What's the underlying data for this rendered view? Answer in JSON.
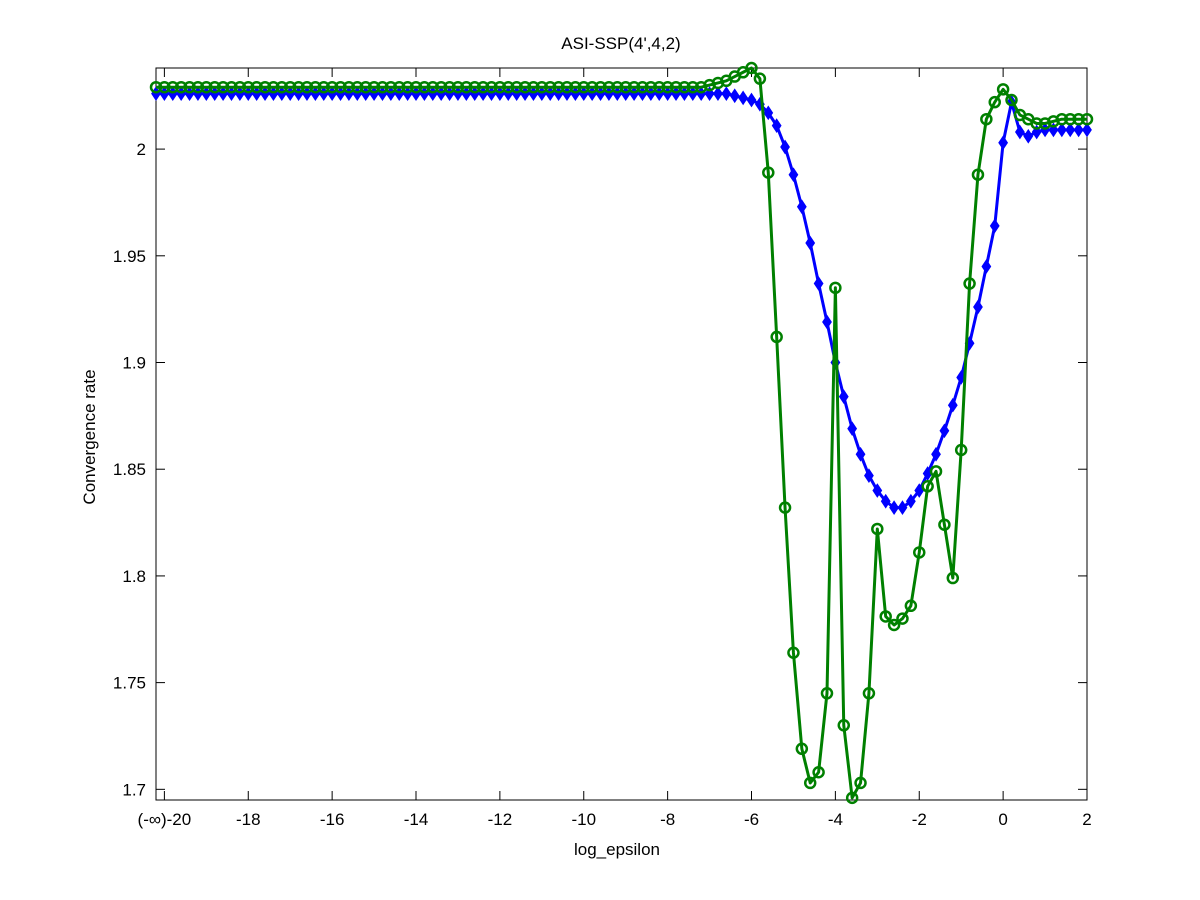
{
  "chart_data": {
    "type": "line",
    "title": "ASI-SSP(4',4,2)",
    "xlabel": "log_epsilon",
    "ylabel": "Convergence rate",
    "xlim": [
      -20.2,
      2
    ],
    "ylim": [
      1.695,
      2.038
    ],
    "xticks": [
      -20,
      -18,
      -16,
      -14,
      -12,
      -10,
      -8,
      -6,
      -4,
      -2,
      0,
      2
    ],
    "xtick_labels": [
      "(-∞)-20",
      "-18",
      "-16",
      "-14",
      "-12",
      "-10",
      "-8",
      "-6",
      "-4",
      "-2",
      "0",
      "2"
    ],
    "yticks": [
      1.7,
      1.75,
      1.8,
      1.85,
      1.9,
      1.95,
      2
    ],
    "ytick_labels": [
      "1.7",
      "1.75",
      "1.8",
      "1.85",
      "1.9",
      "1.95",
      "2"
    ],
    "grid": false,
    "legend": "none",
    "series": [
      {
        "color": "#0000ff",
        "marker": "diamond",
        "x": [
          -20.2,
          -6.6,
          -6.4,
          -6.2,
          -6.0,
          -5.8,
          -5.6,
          -5.4,
          -5.2,
          -5.0,
          -4.8,
          -4.6,
          -4.4,
          -4.2,
          -4.0,
          -3.8,
          -3.6,
          -3.4,
          -3.2,
          -3.0,
          -2.8,
          -2.6,
          -2.4,
          -2.2,
          -2.0,
          -1.8,
          -1.6,
          -1.4,
          -1.2,
          -1.0,
          -0.8,
          -0.6,
          -0.4,
          -0.2,
          0.0,
          0.2,
          0.4,
          0.6,
          0.8,
          1.0,
          1.2,
          1.4,
          1.6,
          1.8,
          2.0
        ],
        "y": [
          2.026,
          2.026,
          2.025,
          2.024,
          2.023,
          2.021,
          2.017,
          2.011,
          2.001,
          1.988,
          1.973,
          1.956,
          1.937,
          1.919,
          1.9,
          1.884,
          1.869,
          1.857,
          1.847,
          1.84,
          1.835,
          1.832,
          1.832,
          1.835,
          1.84,
          1.848,
          1.857,
          1.868,
          1.88,
          1.893,
          1.909,
          1.926,
          1.945,
          1.964,
          2.003,
          2.022,
          2.008,
          2.006,
          2.008,
          2.009,
          2.009,
          2.009,
          2.009,
          2.009,
          2.009
        ]
      },
      {
        "color": "#008000",
        "marker": "circle",
        "x": [
          -20.2,
          -7.4,
          -7.2,
          -7.0,
          -6.8,
          -6.6,
          -6.4,
          -6.2,
          -6.0,
          -5.8,
          -5.6,
          -5.4,
          -5.2,
          -5.0,
          -4.8,
          -4.6,
          -4.4,
          -4.2,
          -4.0,
          -3.8,
          -3.6,
          -3.4,
          -3.2,
          -3.0,
          -2.8,
          -2.6,
          -2.4,
          -2.2,
          -2.0,
          -1.8,
          -1.6,
          -1.4,
          -1.2,
          -1.0,
          -0.8,
          -0.6,
          -0.4,
          -0.2,
          0.0,
          0.2,
          0.4,
          0.6,
          0.8,
          1.0,
          1.2,
          1.4,
          1.6,
          1.8,
          2.0
        ],
        "y": [
          2.029,
          2.029,
          2.029,
          2.03,
          2.031,
          2.032,
          2.034,
          2.036,
          2.038,
          2.033,
          1.989,
          1.912,
          1.832,
          1.764,
          1.719,
          1.703,
          1.708,
          1.745,
          1.935,
          1.73,
          1.696,
          1.703,
          1.745,
          1.822,
          1.781,
          1.777,
          1.78,
          1.786,
          1.811,
          1.842,
          1.849,
          1.824,
          1.799,
          1.859,
          1.937,
          1.988,
          2.014,
          2.022,
          2.028,
          2.023,
          2.016,
          2.014,
          2.012,
          2.012,
          2.013,
          2.014,
          2.014,
          2.014,
          2.014
        ]
      }
    ]
  }
}
